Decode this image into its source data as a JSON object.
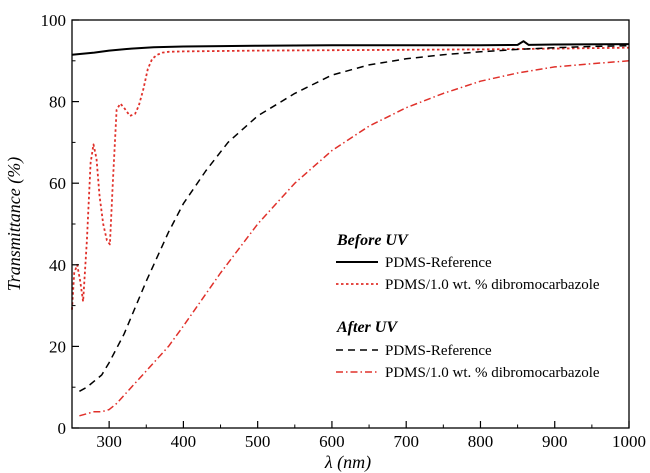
{
  "chart_data": {
    "type": "line",
    "xlabel": "λ (nm)",
    "ylabel": "Transmittance (%)",
    "xlim": [
      250,
      1000
    ],
    "ylim": [
      0,
      100
    ],
    "x_ticks": [
      300,
      400,
      500,
      600,
      700,
      800,
      900,
      1000
    ],
    "y_ticks": [
      0,
      20,
      40,
      60,
      80,
      100
    ],
    "grid": false,
    "legend_position": "center-right",
    "legend_groups": [
      {
        "heading": "Before UV",
        "series": [
          0,
          1
        ]
      },
      {
        "heading": "After UV",
        "series": [
          2,
          3
        ]
      }
    ],
    "series": [
      {
        "name": "PDMS-Reference",
        "color": "#000000",
        "dash": "solid",
        "x": [
          250,
          280,
          300,
          330,
          360,
          400,
          450,
          500,
          600,
          700,
          800,
          850,
          858,
          865,
          900,
          1000
        ],
        "y": [
          91.5,
          92.0,
          92.5,
          93.0,
          93.3,
          93.5,
          93.6,
          93.7,
          93.8,
          93.8,
          93.8,
          93.9,
          94.8,
          93.9,
          94.0,
          94.1
        ]
      },
      {
        "name": "PDMS/1.0 wt. % dibromocarbazole",
        "color": "#e0302a",
        "dash": "dotted",
        "x": [
          250,
          253,
          257,
          261,
          265,
          270,
          275,
          279,
          283,
          287,
          292,
          297,
          301,
          305,
          310,
          315,
          320,
          328,
          335,
          340,
          346,
          352,
          358,
          365,
          372,
          380,
          400,
          450,
          500,
          600,
          700,
          800,
          900,
          1000
        ],
        "y": [
          29,
          38,
          40,
          36,
          31,
          46,
          65,
          69.5,
          66,
          57,
          50,
          46,
          45,
          60,
          78,
          79.5,
          78.5,
          76.5,
          77,
          79,
          83,
          88,
          90.5,
          91.5,
          92,
          92.2,
          92.3,
          92.4,
          92.5,
          92.6,
          92.7,
          92.8,
          93.0,
          93.2
        ]
      },
      {
        "name": "PDMS-Reference",
        "color": "#000000",
        "dash": "dashed",
        "x": [
          260,
          270,
          280,
          290,
          300,
          320,
          350,
          380,
          400,
          430,
          460,
          500,
          550,
          600,
          650,
          700,
          750,
          800,
          850,
          900,
          950,
          1000
        ],
        "y": [
          9,
          10,
          11.5,
          13,
          16,
          23,
          36,
          48,
          55,
          63,
          70,
          76.5,
          82,
          86.5,
          89,
          90.5,
          91.5,
          92.2,
          92.8,
          93.2,
          93.5,
          93.7
        ]
      },
      {
        "name": "PDMS/1.0 wt. % dibromocarbazole",
        "color": "#e0302a",
        "dash": "dashdot",
        "x": [
          260,
          270,
          280,
          290,
          300,
          310,
          320,
          330,
          350,
          380,
          400,
          450,
          500,
          550,
          600,
          650,
          700,
          750,
          800,
          850,
          900,
          950,
          1000
        ],
        "y": [
          3,
          3.5,
          4,
          4,
          4.5,
          6,
          8,
          10,
          14,
          20,
          25,
          38,
          50,
          60,
          68,
          74,
          78.5,
          82,
          85,
          87,
          88.5,
          89.3,
          90
        ]
      }
    ]
  }
}
